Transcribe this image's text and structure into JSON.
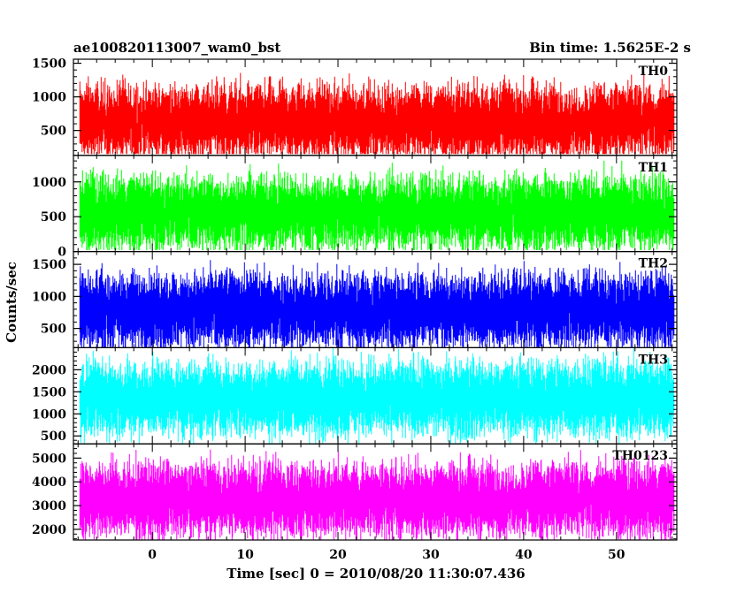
{
  "chart_data": {
    "type": "line",
    "title": "ae100820113007_wam0_bst",
    "subtitle": "Bin time: 1.5625E-2 s",
    "xlabel": "Time [sec] 0 = 2010/08/20 11:30:07.436",
    "ylabel": "Counts/sec",
    "xlim": [
      -8.5,
      56.5
    ],
    "data_x_range": [
      -7.8,
      56.2
    ],
    "xticks": [
      0,
      10,
      20,
      30,
      40,
      50
    ],
    "xtick_labels": [
      "0",
      "10",
      "20",
      "30",
      "40",
      "50"
    ],
    "grid": false,
    "panels": [
      {
        "name": "TH0",
        "color": "#ff0000",
        "ylim": [
          130,
          1560
        ],
        "yticks": [
          500,
          1000,
          1500
        ],
        "ytick_labels": [
          "500",
          "1000",
          "1500"
        ],
        "series_mean": 630,
        "series_min": 150,
        "series_max": 1560
      },
      {
        "name": "TH1",
        "color": "#00ff00",
        "ylim": [
          0,
          1380
        ],
        "yticks": [
          0,
          500,
          1000
        ],
        "ytick_labels": [
          "0",
          "500",
          "1000"
        ],
        "series_mean": 560,
        "series_min": 20,
        "series_max": 1380
      },
      {
        "name": "TH2",
        "color": "#0000ff",
        "ylim": [
          200,
          1700
        ],
        "yticks": [
          500,
          1000,
          1500
        ],
        "ytick_labels": [
          "500",
          "1000",
          "1500"
        ],
        "series_mean": 780,
        "series_min": 200,
        "series_max": 1700
      },
      {
        "name": "TH3",
        "color": "#00ffff",
        "ylim": [
          320,
          2500
        ],
        "yticks": [
          500,
          1000,
          1500,
          2000
        ],
        "ytick_labels": [
          "500",
          "1000",
          "1500",
          "2000"
        ],
        "series_mean": 1350,
        "series_min": 320,
        "series_max": 2500
      },
      {
        "name": "TH0123",
        "color": "#ff00ff",
        "ylim": [
          1550,
          5600
        ],
        "yticks": [
          2000,
          3000,
          4000,
          5000
        ],
        "ytick_labels": [
          "2000",
          "3000",
          "4000",
          "5000"
        ],
        "series_mean": 3250,
        "series_min": 1550,
        "series_max": 5600
      }
    ]
  }
}
